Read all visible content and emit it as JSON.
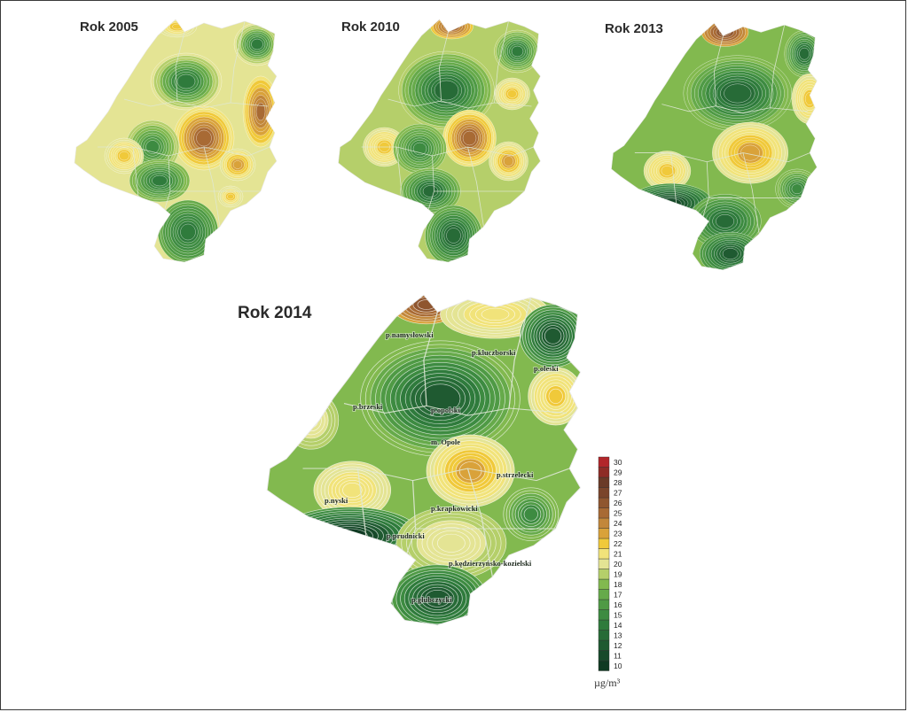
{
  "maps": [
    {
      "title": "Rok 2005"
    },
    {
      "title": "Rok 2010"
    },
    {
      "title": "Rok 2013"
    },
    {
      "title": "Rok 2014"
    }
  ],
  "district_labels": [
    "p.namysłowski",
    "p.kluczborski",
    "p.oleski",
    "p.brzeski",
    "p.opolski",
    "m. Opole",
    "p.strzelecki",
    "p.nyski",
    "p.krapkowicki",
    "p.prudnicki",
    "p.kędzierzyńsko-kozielski",
    "p.głubczycki"
  ],
  "legend": {
    "unit": "µg/m³",
    "values": [
      "10",
      "11",
      "12",
      "13",
      "14",
      "15",
      "16",
      "17",
      "18",
      "19",
      "20",
      "21",
      "22",
      "23",
      "24",
      "25",
      "26",
      "27",
      "28",
      "29",
      "30"
    ],
    "colors": [
      "#0f3a22",
      "#174a2a",
      "#1f5a31",
      "#276b37",
      "#2f7b3c",
      "#3d8b41",
      "#4f9a45",
      "#66aa4a",
      "#82b94f",
      "#b5cf6a",
      "#e4e494",
      "#f1e37a",
      "#f0c93a",
      "#d9a23a",
      "#c2873a",
      "#a86a34",
      "#8f562f",
      "#7a452b",
      "#6a3a27",
      "#8e2c26",
      "#b2262a"
    ]
  },
  "colors": {
    "frame": "#3a3a3a",
    "contour": "#ffffff",
    "district_border": "#dfe8d6"
  }
}
